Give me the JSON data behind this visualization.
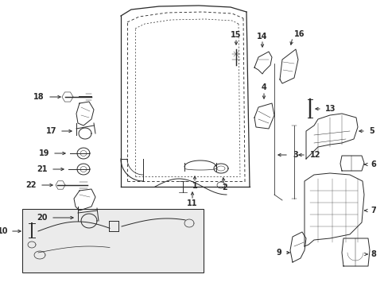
{
  "bg_color": "#ffffff",
  "fig_width": 4.89,
  "fig_height": 3.6,
  "dpi": 100,
  "line_color": "#2a2a2a",
  "lw": 0.7
}
